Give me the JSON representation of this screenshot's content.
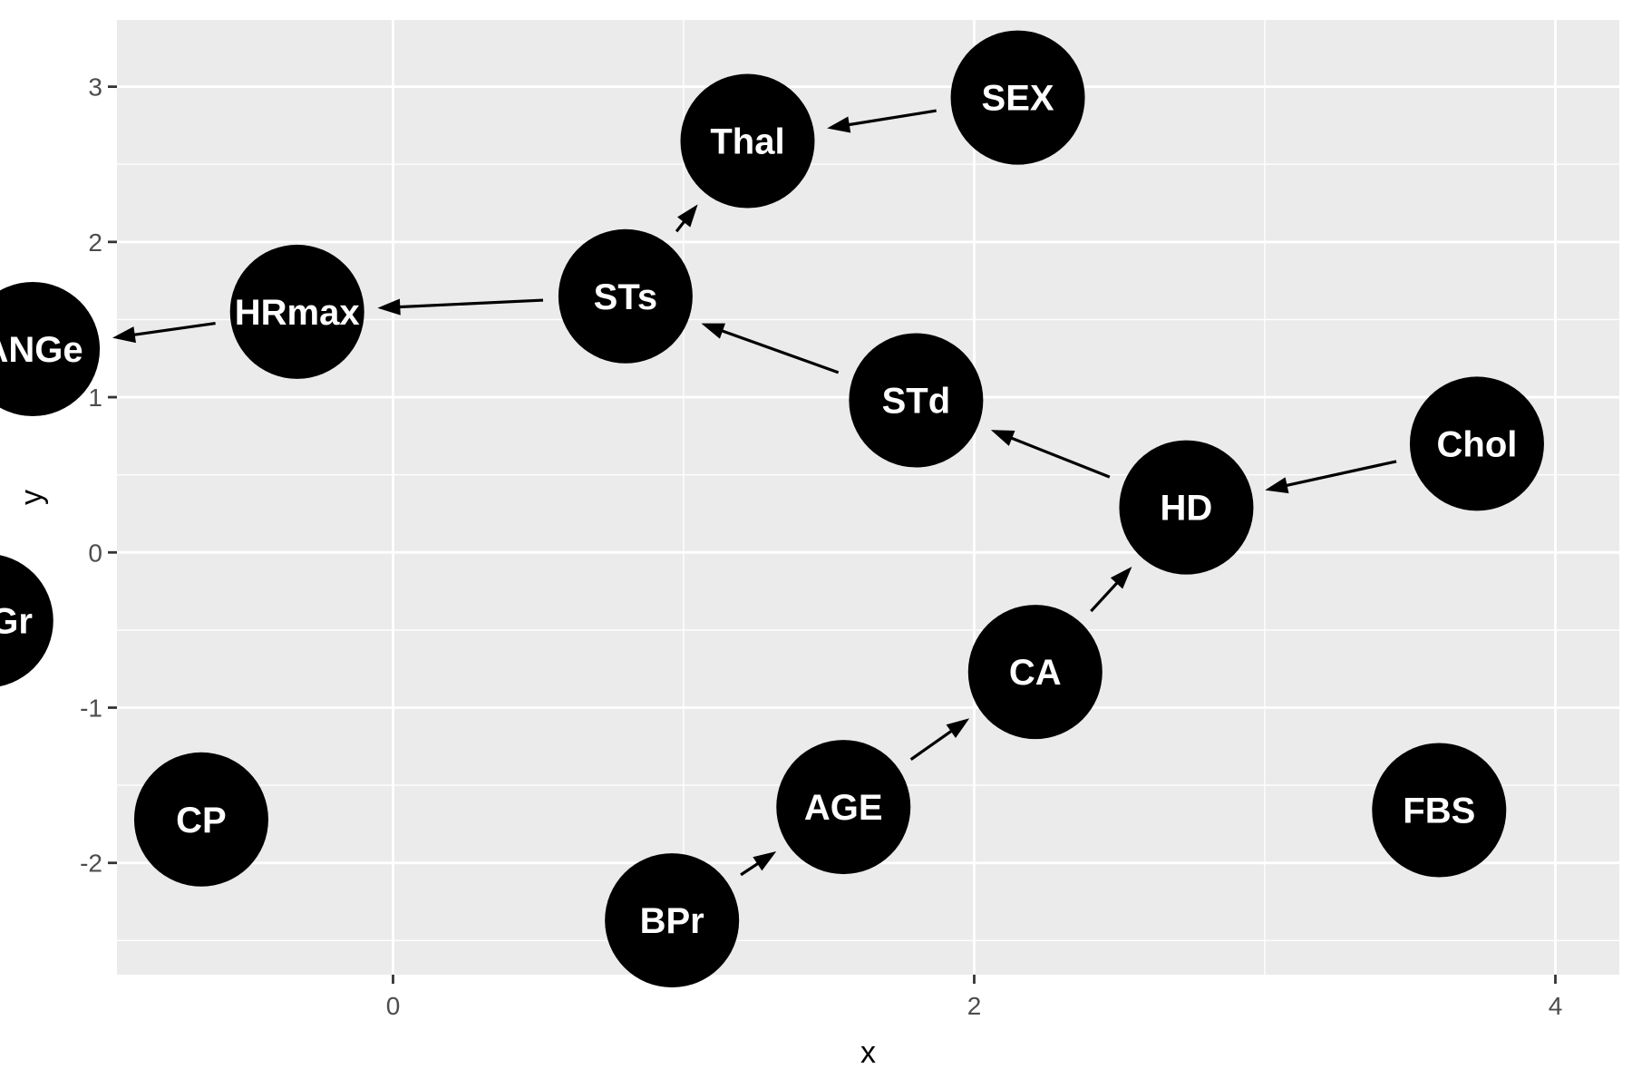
{
  "axes": {
    "xlabel": "x",
    "ylabel": "y",
    "xlim": [
      -0.95,
      4.22
    ],
    "ylim": [
      -2.72,
      3.43
    ],
    "x_ticks": [
      0,
      2,
      4
    ],
    "y_ticks": [
      -2,
      -1,
      0,
      1,
      2,
      3
    ],
    "x_tick_labels": [
      "0",
      "2",
      "4"
    ],
    "y_tick_labels": [
      "-2",
      "-1",
      "0",
      "1",
      "2",
      "3"
    ],
    "grid": true,
    "panel_color": "#ebebeb",
    "grid_color": "#ffffff"
  },
  "nodes": [
    {
      "id": "SEX",
      "label": "SEX",
      "x": 2.15,
      "y": 2.93
    },
    {
      "id": "Thal",
      "label": "Thal",
      "x": 1.22,
      "y": 2.65
    },
    {
      "id": "STs",
      "label": "STs",
      "x": 0.8,
      "y": 1.65
    },
    {
      "id": "HRmax",
      "label": "HRmax",
      "x": -0.33,
      "y": 1.55
    },
    {
      "id": "ANGe",
      "label": "ANGe",
      "x": -1.24,
      "y": 1.31
    },
    {
      "id": "STd",
      "label": "STd",
      "x": 1.8,
      "y": 0.98
    },
    {
      "id": "HD",
      "label": "HD",
      "x": 2.73,
      "y": 0.29
    },
    {
      "id": "Chol",
      "label": "Chol",
      "x": 3.73,
      "y": 0.7
    },
    {
      "id": "ECGr",
      "label": "ECGr",
      "x": -1.4,
      "y": -0.44
    },
    {
      "id": "CA",
      "label": "CA",
      "x": 2.21,
      "y": -0.77
    },
    {
      "id": "AGE",
      "label": "AGE",
      "x": 1.55,
      "y": -1.64
    },
    {
      "id": "CP",
      "label": "CP",
      "x": -0.66,
      "y": -1.72
    },
    {
      "id": "FBS",
      "label": "FBS",
      "x": 3.6,
      "y": -1.66
    },
    {
      "id": "BPr",
      "label": "BPr",
      "x": 0.96,
      "y": -2.37
    }
  ],
  "edges": [
    {
      "from": "SEX",
      "to": "Thal"
    },
    {
      "from": "STs",
      "to": "Thal"
    },
    {
      "from": "STs",
      "to": "HRmax"
    },
    {
      "from": "HRmax",
      "to": "ANGe"
    },
    {
      "from": "STd",
      "to": "STs"
    },
    {
      "from": "HD",
      "to": "STd"
    },
    {
      "from": "Chol",
      "to": "HD"
    },
    {
      "from": "CA",
      "to": "HD"
    },
    {
      "from": "AGE",
      "to": "CA"
    },
    {
      "from": "BPr",
      "to": "AGE"
    }
  ],
  "colors": {
    "node_fill": "#000000",
    "node_text": "#ffffff",
    "edge": "#000000"
  }
}
